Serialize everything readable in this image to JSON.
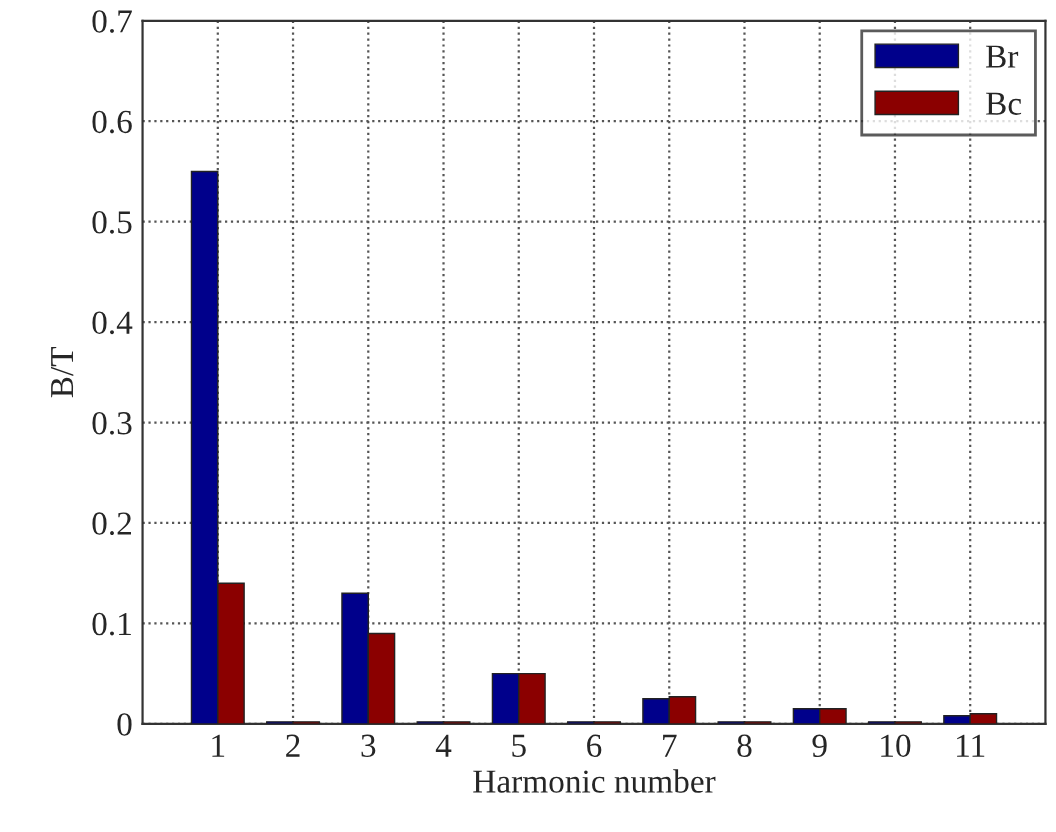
{
  "chart_data": {
    "type": "bar",
    "xlabel": "Harmonic number",
    "ylabel": "B/T",
    "categories": [
      "1",
      "2",
      "3",
      "4",
      "5",
      "6",
      "7",
      "8",
      "9",
      "10",
      "11"
    ],
    "series": [
      {
        "name": "Br",
        "color": "#00008b",
        "values": [
          0.55,
          0.002,
          0.13,
          0.002,
          0.05,
          0.002,
          0.025,
          0.002,
          0.015,
          0.002,
          0.008
        ]
      },
      {
        "name": "Bc",
        "color": "#8b0000",
        "values": [
          0.14,
          0.002,
          0.09,
          0.002,
          0.05,
          0.002,
          0.027,
          0.002,
          0.015,
          0.002,
          0.01
        ]
      }
    ],
    "ylim": [
      0,
      0.7
    ],
    "yticks": [
      0,
      0.1,
      0.2,
      0.3,
      0.4,
      0.5,
      0.6,
      0.7
    ],
    "grid": true,
    "legend": "top right"
  }
}
